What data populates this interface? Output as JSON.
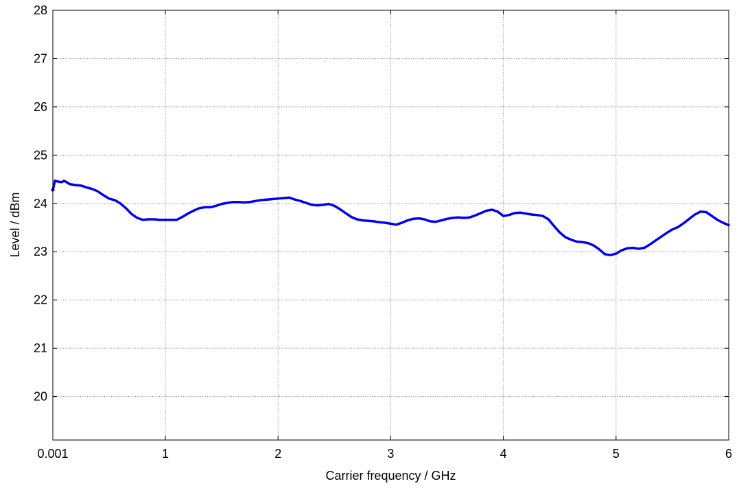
{
  "chart_data": {
    "type": "line",
    "title": "",
    "xlabel": "Carrier frequency / GHz",
    "ylabel": "Level / dBm",
    "xlim": [
      0.001,
      6
    ],
    "ylim": [
      19.1,
      28
    ],
    "grid": true,
    "x_ticks": [
      {
        "value": 0.001,
        "label": "0.001"
      },
      {
        "value": 1,
        "label": "1"
      },
      {
        "value": 2,
        "label": "2"
      },
      {
        "value": 3,
        "label": "3"
      },
      {
        "value": 4,
        "label": "4"
      },
      {
        "value": 5,
        "label": "5"
      },
      {
        "value": 6,
        "label": "6"
      }
    ],
    "y_ticks": [
      {
        "value": 20,
        "label": "20"
      },
      {
        "value": 21,
        "label": "21"
      },
      {
        "value": 22,
        "label": "22"
      },
      {
        "value": 23,
        "label": "23"
      },
      {
        "value": 24,
        "label": "24"
      },
      {
        "value": 25,
        "label": "25"
      },
      {
        "value": 26,
        "label": "26"
      },
      {
        "value": 27,
        "label": "27"
      },
      {
        "value": 28,
        "label": "28"
      }
    ],
    "series": [
      {
        "color": "#0000ee",
        "x": [
          0.001,
          0.02,
          0.05,
          0.08,
          0.1,
          0.13,
          0.15,
          0.2,
          0.25,
          0.3,
          0.35,
          0.4,
          0.45,
          0.5,
          0.55,
          0.6,
          0.65,
          0.7,
          0.75,
          0.8,
          0.85,
          0.9,
          0.95,
          1.0,
          1.1,
          1.15,
          1.2,
          1.25,
          1.3,
          1.35,
          1.4,
          1.45,
          1.5,
          1.55,
          1.6,
          1.65,
          1.7,
          1.75,
          1.8,
          1.85,
          1.9,
          1.95,
          2.0,
          2.05,
          2.1,
          2.15,
          2.2,
          2.25,
          2.3,
          2.35,
          2.4,
          2.45,
          2.5,
          2.55,
          2.6,
          2.65,
          2.7,
          2.75,
          2.8,
          2.85,
          2.9,
          2.95,
          3.0,
          3.05,
          3.1,
          3.15,
          3.2,
          3.25,
          3.3,
          3.35,
          3.4,
          3.45,
          3.5,
          3.55,
          3.6,
          3.65,
          3.7,
          3.75,
          3.8,
          3.85,
          3.9,
          3.95,
          4.0,
          4.05,
          4.1,
          4.15,
          4.2,
          4.25,
          4.3,
          4.35,
          4.4,
          4.45,
          4.5,
          4.55,
          4.6,
          4.65,
          4.7,
          4.75,
          4.8,
          4.85,
          4.9,
          4.95,
          5.0,
          5.05,
          5.1,
          5.15,
          5.2,
          5.25,
          5.3,
          5.35,
          5.4,
          5.45,
          5.5,
          5.55,
          5.6,
          5.65,
          5.7,
          5.75,
          5.8,
          5.85,
          5.9,
          5.95,
          6.0
        ],
        "y": [
          24.28,
          24.47,
          24.45,
          24.44,
          24.47,
          24.43,
          24.4,
          24.38,
          24.37,
          24.33,
          24.3,
          24.25,
          24.17,
          24.1,
          24.07,
          24.0,
          23.9,
          23.78,
          23.7,
          23.66,
          23.67,
          23.67,
          23.66,
          23.66,
          23.66,
          23.72,
          23.79,
          23.85,
          23.9,
          23.92,
          23.92,
          23.95,
          23.99,
          24.01,
          24.03,
          24.03,
          24.02,
          24.03,
          24.05,
          24.07,
          24.08,
          24.09,
          24.1,
          24.11,
          24.12,
          24.08,
          24.05,
          24.01,
          23.97,
          23.96,
          23.97,
          23.99,
          23.95,
          23.88,
          23.8,
          23.72,
          23.67,
          23.65,
          23.64,
          23.63,
          23.61,
          23.6,
          23.58,
          23.56,
          23.6,
          23.65,
          23.68,
          23.69,
          23.67,
          23.63,
          23.62,
          23.65,
          23.68,
          23.7,
          23.71,
          23.7,
          23.71,
          23.75,
          23.8,
          23.85,
          23.87,
          23.83,
          23.74,
          23.76,
          23.8,
          23.81,
          23.79,
          23.77,
          23.76,
          23.74,
          23.67,
          23.53,
          23.4,
          23.3,
          23.25,
          23.21,
          23.2,
          23.18,
          23.13,
          23.05,
          22.95,
          22.93,
          22.96,
          23.03,
          23.07,
          23.08,
          23.06,
          23.08,
          23.15,
          23.23,
          23.31,
          23.39,
          23.46,
          23.51,
          23.59,
          23.68,
          23.77,
          23.83,
          23.82,
          23.74,
          23.66,
          23.6,
          23.55
        ]
      }
    ]
  }
}
